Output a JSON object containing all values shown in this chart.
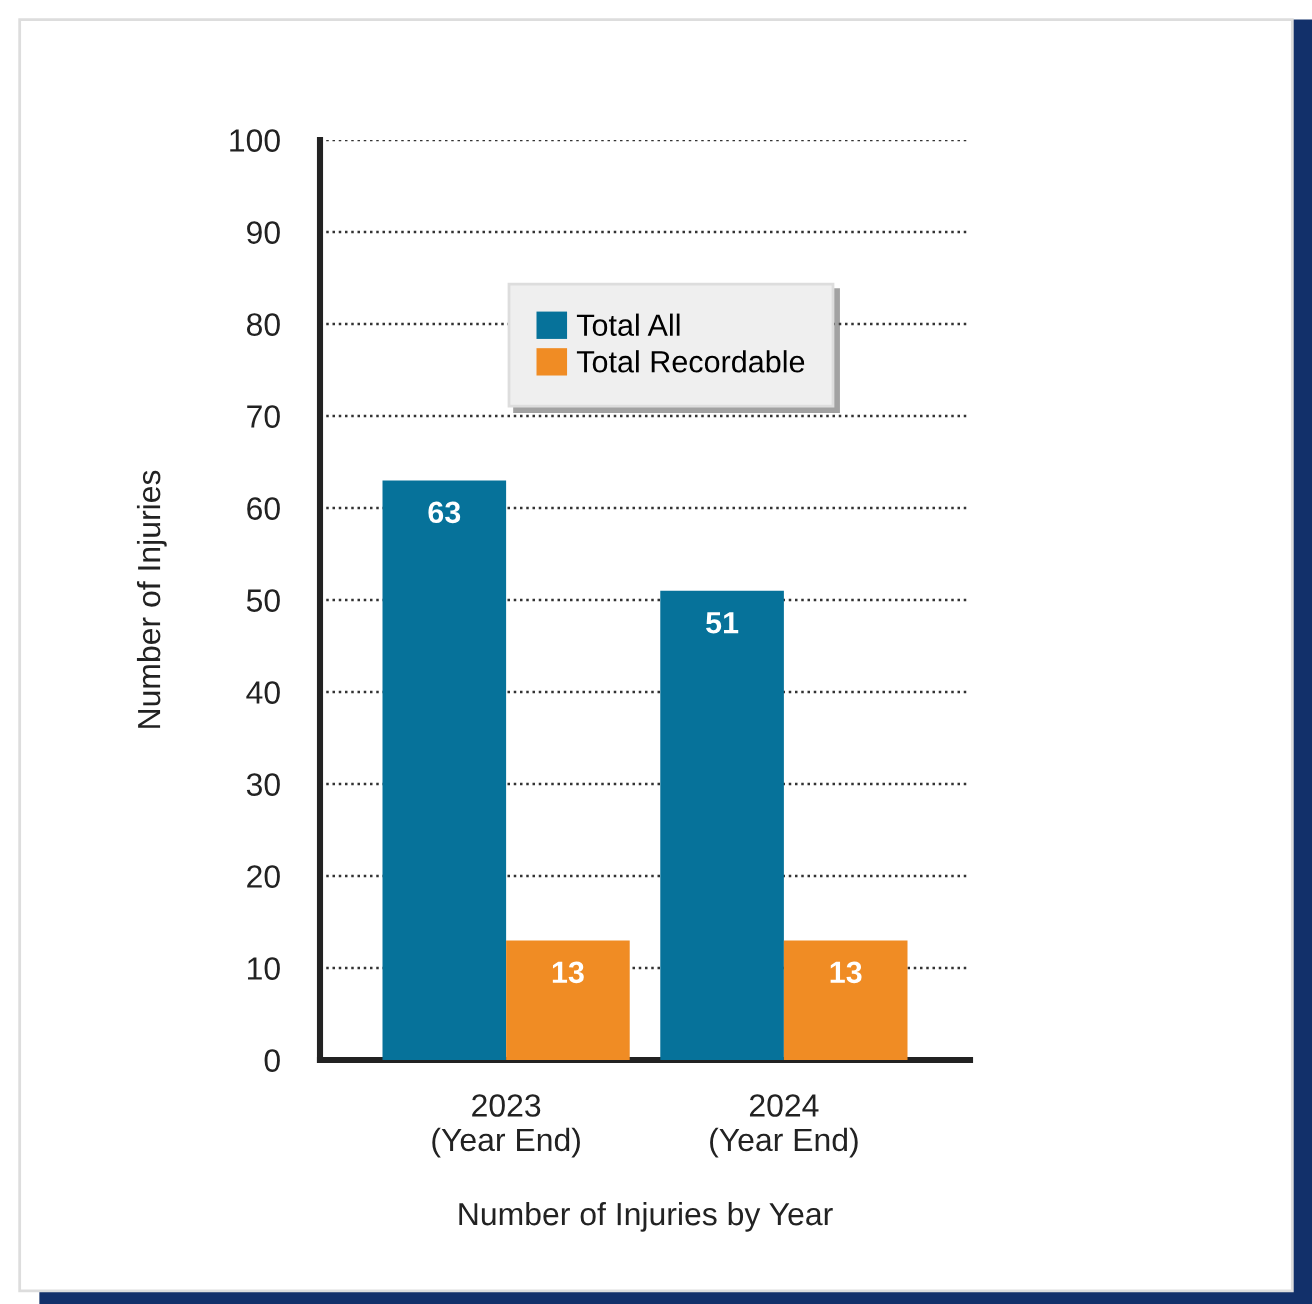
{
  "chart_data": {
    "type": "bar",
    "xlabel": "Number of Injuries by Year",
    "ylabel": "Number of Injuries",
    "categories": [
      "2023\n(Year End)",
      "2024\n(Year End)"
    ],
    "series": [
      {
        "name": "Total All",
        "color": "#06729a",
        "values": [
          63,
          51
        ]
      },
      {
        "name": "Total Recordable",
        "color": "#f08c24",
        "values": [
          13,
          13
        ]
      }
    ],
    "ylim": [
      0,
      100
    ],
    "yticks": [
      0,
      10,
      20,
      30,
      40,
      50,
      60,
      70,
      80,
      90,
      100
    ],
    "grid": "y",
    "legend": "top",
    "data_labels": true
  }
}
